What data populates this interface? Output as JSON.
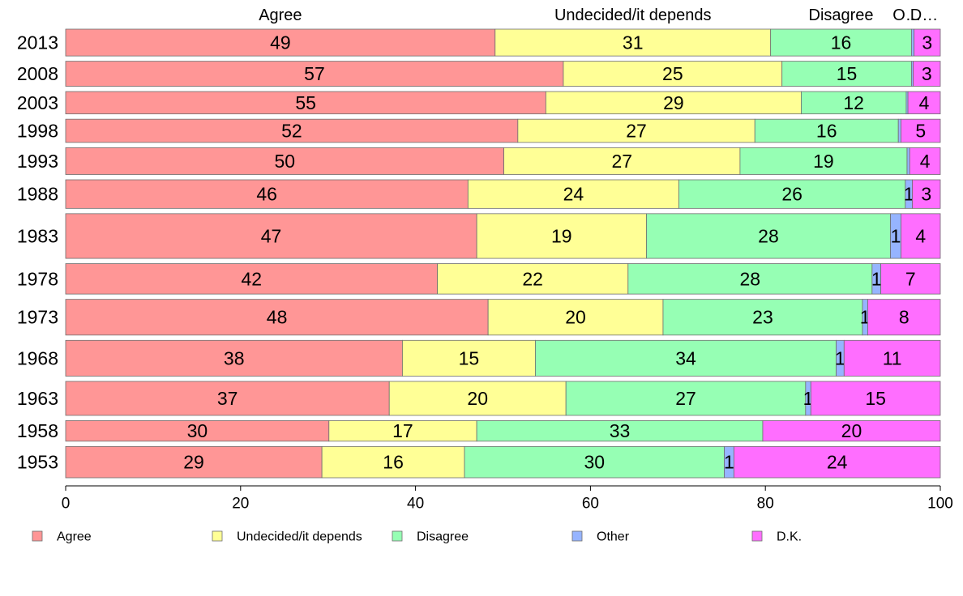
{
  "chart_data": {
    "type": "bar",
    "orientation": "horizontal",
    "stacked": true,
    "categories": [
      "2013",
      "2008",
      "2003",
      "1998",
      "1993",
      "1988",
      "1983",
      "1978",
      "1973",
      "1968",
      "1963",
      "1958",
      "1953"
    ],
    "series": [
      {
        "name": "Agree",
        "color": "#ff9696",
        "values": [
          49,
          57,
          55,
          52,
          50,
          46,
          47,
          42,
          48,
          38,
          37,
          30,
          29
        ],
        "extent": [
          49.1,
          56.9,
          54.9,
          51.7,
          50.1,
          46.0,
          47.0,
          42.5,
          48.3,
          38.5,
          37.0,
          30.1,
          29.3
        ]
      },
      {
        "name": "Undecided/it depends",
        "color": "#ffff96",
        "values": [
          31,
          25,
          29,
          27,
          27,
          24,
          19,
          22,
          20,
          15,
          20,
          17,
          16
        ],
        "extent": [
          31.5,
          25.0,
          29.2,
          27.1,
          27.0,
          24.1,
          19.4,
          21.8,
          20.0,
          15.2,
          20.2,
          16.9,
          16.3
        ]
      },
      {
        "name": "Disagree",
        "color": "#96ffb4",
        "values": [
          16,
          15,
          12,
          16,
          19,
          26,
          28,
          28,
          23,
          34,
          27,
          33,
          30
        ],
        "extent": [
          16.1,
          14.8,
          12.0,
          16.4,
          19.1,
          25.9,
          27.9,
          27.9,
          22.8,
          34.4,
          27.4,
          32.7,
          29.7
        ]
      },
      {
        "name": "Other",
        "color": "#96b4ff",
        "values": [
          "",
          "",
          "",
          "",
          "",
          1,
          1,
          1,
          1,
          1,
          1,
          "",
          1
        ],
        "extent": [
          0.3,
          0.2,
          0.2,
          0.3,
          0.3,
          0.8,
          1.2,
          1.0,
          0.6,
          0.9,
          0.6,
          0.0,
          1.1
        ]
      },
      {
        "name": "D.K.",
        "color": "#ff6eff",
        "values": [
          3,
          3,
          4,
          5,
          4,
          3,
          4,
          7,
          8,
          11,
          15,
          20,
          24
        ],
        "extent": [
          3.0,
          3.1,
          3.7,
          4.5,
          3.5,
          3.2,
          4.5,
          6.8,
          8.3,
          11.0,
          14.8,
          20.3,
          23.6
        ]
      }
    ],
    "bar_weights": [
      30,
      28,
      25,
      26,
      30,
      32,
      50,
      34,
      40,
      40,
      38,
      23,
      35
    ],
    "top_labels": [
      "Agree",
      "Undecided/it depends",
      "Disagree",
      "O…",
      "D…"
    ],
    "x_ticks": [
      0,
      20,
      40,
      60,
      80,
      100
    ],
    "xlim": [
      0,
      100
    ],
    "legend_position": "bottom",
    "grid": false
  }
}
